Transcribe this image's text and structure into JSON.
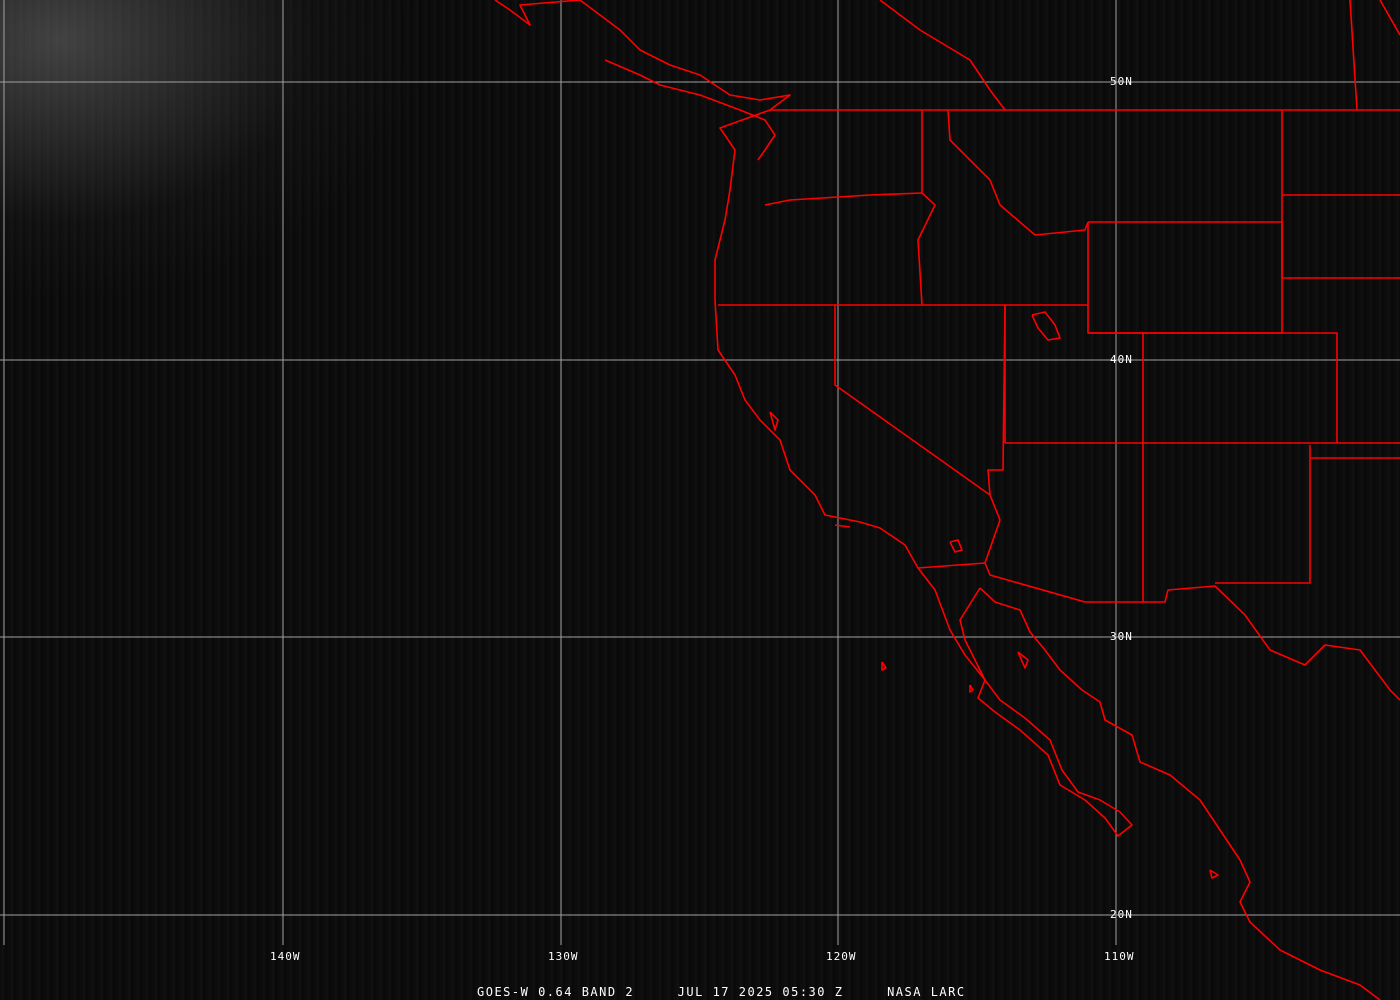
{
  "caption": {
    "satellite": "GOES-W 0.64 BAND 2",
    "datetime": "JUL 17 2025 05:30 Z",
    "source": "NASA LARC"
  },
  "grid": {
    "latitude_labels": [
      "50N",
      "40N",
      "30N",
      "20N"
    ],
    "longitude_labels": [
      "140W",
      "130W",
      "120W",
      "110W"
    ]
  },
  "colors": {
    "boundaries": "#ff0000",
    "grid": "#a0a0a0"
  }
}
